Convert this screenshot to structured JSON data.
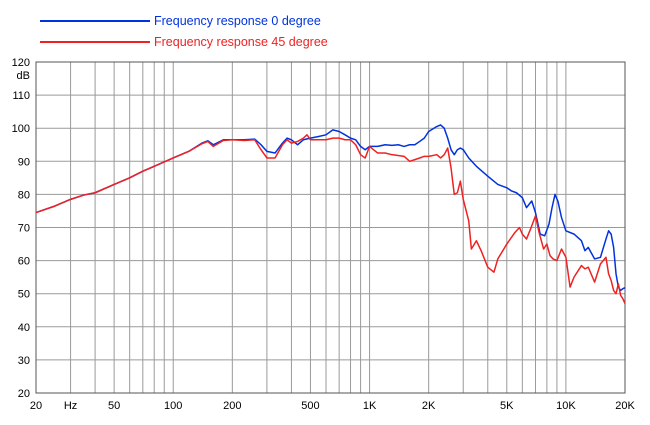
{
  "chart_data": {
    "type": "line",
    "x_scale": "log",
    "xlim": [
      20,
      20000
    ],
    "ylim": [
      20,
      120
    ],
    "ylabel": "dB",
    "grid": true,
    "legend_position": "top-left",
    "x_ticks": [
      {
        "value": 20,
        "label": "20"
      },
      {
        "value": 30,
        "label": "Hz"
      },
      {
        "value": 50,
        "label": "50"
      },
      {
        "value": 100,
        "label": "100"
      },
      {
        "value": 200,
        "label": "200"
      },
      {
        "value": 500,
        "label": "500"
      },
      {
        "value": 1000,
        "label": "1K"
      },
      {
        "value": 2000,
        "label": "2K"
      },
      {
        "value": 5000,
        "label": "5K"
      },
      {
        "value": 10000,
        "label": "10K"
      },
      {
        "value": 20000,
        "label": "20K"
      }
    ],
    "y_ticks": [
      20,
      30,
      40,
      50,
      60,
      70,
      80,
      90,
      100,
      110,
      120
    ],
    "series": [
      {
        "name": "Frequency response 0 degree",
        "color": "#0033dd",
        "points": [
          [
            20,
            74.5
          ],
          [
            25,
            76.5
          ],
          [
            30,
            78.5
          ],
          [
            35,
            79.8
          ],
          [
            40,
            80.5
          ],
          [
            50,
            83
          ],
          [
            60,
            85
          ],
          [
            70,
            87
          ],
          [
            80,
            88.5
          ],
          [
            100,
            91
          ],
          [
            120,
            93
          ],
          [
            140,
            95.5
          ],
          [
            150,
            96.2
          ],
          [
            160,
            95
          ],
          [
            180,
            96.5
          ],
          [
            200,
            96.5
          ],
          [
            230,
            96.5
          ],
          [
            260,
            96.7
          ],
          [
            280,
            95
          ],
          [
            300,
            93
          ],
          [
            330,
            92.5
          ],
          [
            360,
            95.5
          ],
          [
            380,
            97
          ],
          [
            400,
            96.5
          ],
          [
            430,
            95
          ],
          [
            460,
            96.5
          ],
          [
            500,
            97
          ],
          [
            550,
            97.5
          ],
          [
            600,
            98
          ],
          [
            650,
            99.5
          ],
          [
            700,
            99
          ],
          [
            750,
            98
          ],
          [
            800,
            97
          ],
          [
            850,
            96.5
          ],
          [
            900,
            94.5
          ],
          [
            950,
            93.5
          ],
          [
            1000,
            94.5
          ],
          [
            1100,
            94.5
          ],
          [
            1200,
            95
          ],
          [
            1300,
            94.8
          ],
          [
            1400,
            95
          ],
          [
            1500,
            94.5
          ],
          [
            1600,
            95
          ],
          [
            1700,
            95
          ],
          [
            1800,
            96
          ],
          [
            1900,
            97
          ],
          [
            2000,
            99
          ],
          [
            2200,
            100.5
          ],
          [
            2300,
            101
          ],
          [
            2400,
            100
          ],
          [
            2500,
            97
          ],
          [
            2600,
            93.5
          ],
          [
            2700,
            92
          ],
          [
            2800,
            93.5
          ],
          [
            2900,
            94
          ],
          [
            3000,
            93.5
          ],
          [
            3200,
            91
          ],
          [
            3500,
            88.5
          ],
          [
            4000,
            85.5
          ],
          [
            4500,
            83
          ],
          [
            5000,
            82
          ],
          [
            5300,
            81
          ],
          [
            5600,
            80.5
          ],
          [
            6000,
            79
          ],
          [
            6300,
            76
          ],
          [
            6700,
            78
          ],
          [
            7000,
            74.5
          ],
          [
            7400,
            68
          ],
          [
            7800,
            67.5
          ],
          [
            8200,
            71
          ],
          [
            8500,
            76
          ],
          [
            8800,
            80
          ],
          [
            9100,
            78
          ],
          [
            9500,
            73
          ],
          [
            10000,
            69
          ],
          [
            11000,
            68
          ],
          [
            12000,
            66
          ],
          [
            12500,
            63
          ],
          [
            13000,
            64
          ],
          [
            14000,
            60.5
          ],
          [
            15000,
            61
          ],
          [
            16000,
            66.5
          ],
          [
            16500,
            69
          ],
          [
            17000,
            68
          ],
          [
            17500,
            64
          ],
          [
            18000,
            56
          ],
          [
            18500,
            52
          ],
          [
            19000,
            51
          ],
          [
            19500,
            51.5
          ],
          [
            20000,
            51.8
          ]
        ]
      },
      {
        "name": "Frequency response 45 degree",
        "color": "#ee2222",
        "points": [
          [
            20,
            74.5
          ],
          [
            25,
            76.5
          ],
          [
            30,
            78.5
          ],
          [
            35,
            79.8
          ],
          [
            40,
            80.5
          ],
          [
            50,
            83
          ],
          [
            60,
            85
          ],
          [
            70,
            87
          ],
          [
            80,
            88.5
          ],
          [
            100,
            91
          ],
          [
            120,
            93
          ],
          [
            140,
            95.3
          ],
          [
            150,
            96
          ],
          [
            160,
            94.5
          ],
          [
            180,
            96.3
          ],
          [
            200,
            96.5
          ],
          [
            230,
            96.3
          ],
          [
            260,
            96.5
          ],
          [
            280,
            93.5
          ],
          [
            300,
            91
          ],
          [
            330,
            91
          ],
          [
            360,
            95
          ],
          [
            380,
            96.5
          ],
          [
            400,
            95.5
          ],
          [
            430,
            96
          ],
          [
            460,
            97
          ],
          [
            480,
            98
          ],
          [
            500,
            96.5
          ],
          [
            550,
            96.5
          ],
          [
            600,
            96.5
          ],
          [
            650,
            97
          ],
          [
            700,
            97
          ],
          [
            750,
            96.5
          ],
          [
            800,
            96.5
          ],
          [
            850,
            95
          ],
          [
            900,
            92
          ],
          [
            950,
            91
          ],
          [
            1000,
            94.5
          ],
          [
            1100,
            92.5
          ],
          [
            1200,
            92.5
          ],
          [
            1300,
            92
          ],
          [
            1500,
            91.5
          ],
          [
            1600,
            90
          ],
          [
            1700,
            90.5
          ],
          [
            1800,
            91
          ],
          [
            1900,
            91.5
          ],
          [
            2000,
            91.5
          ],
          [
            2200,
            92
          ],
          [
            2300,
            91
          ],
          [
            2400,
            92
          ],
          [
            2500,
            94
          ],
          [
            2600,
            88
          ],
          [
            2700,
            80
          ],
          [
            2800,
            80.5
          ],
          [
            2900,
            84
          ],
          [
            3000,
            78.5
          ],
          [
            3200,
            72
          ],
          [
            3300,
            63.5
          ],
          [
            3500,
            66
          ],
          [
            3700,
            63
          ],
          [
            4000,
            58
          ],
          [
            4300,
            56.5
          ],
          [
            4500,
            60.5
          ],
          [
            5000,
            65
          ],
          [
            5500,
            68.5
          ],
          [
            5800,
            70
          ],
          [
            6000,
            68
          ],
          [
            6300,
            66.5
          ],
          [
            6600,
            69.5
          ],
          [
            7000,
            73.5
          ],
          [
            7300,
            68.5
          ],
          [
            7700,
            63.5
          ],
          [
            8000,
            65
          ],
          [
            8300,
            61.5
          ],
          [
            8600,
            60.5
          ],
          [
            9000,
            60
          ],
          [
            9500,
            63.5
          ],
          [
            10000,
            61
          ],
          [
            10500,
            52
          ],
          [
            11000,
            55
          ],
          [
            12000,
            58.5
          ],
          [
            12500,
            57.5
          ],
          [
            13000,
            58
          ],
          [
            14000,
            53.5
          ],
          [
            15000,
            59
          ],
          [
            16000,
            61
          ],
          [
            16500,
            56
          ],
          [
            17000,
            54
          ],
          [
            17500,
            51
          ],
          [
            18000,
            50
          ],
          [
            18500,
            53
          ],
          [
            19000,
            49.5
          ],
          [
            19500,
            48.5
          ],
          [
            20000,
            47
          ]
        ]
      }
    ]
  }
}
